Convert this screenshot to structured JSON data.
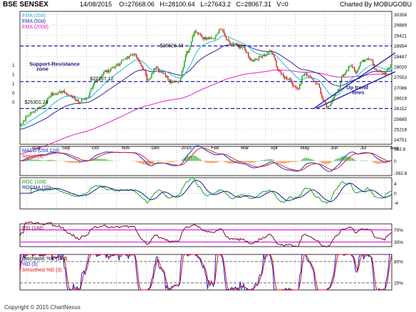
{
  "header": {
    "title": "BSE SENSEX",
    "date": "14/08/2015",
    "open": "O=27668.06",
    "high": "H=28100.64",
    "low": "L=27643.2",
    "close": "C=28067.31",
    "volume": "V=0",
    "charted_by": "Charted By MOBUGOBU"
  },
  "footer": {
    "copyright": "Copyright © 2015 ChartNexus"
  },
  "colors": {
    "ema20": "#22bcd6",
    "ema50": "#2a2a9c",
    "ema200": "#dd22cc",
    "price_up": "#13a313",
    "price_down": "#d11c1c",
    "support_line": "#2222aa",
    "trend_line": "#2222aa",
    "macd": "#1a2acc",
    "signal": "#e02020",
    "hist_up": "#1aa01a",
    "hist_down": "#e06a10",
    "roc": "#19a319",
    "rocma": "#1a1a99",
    "rsi": "#800040",
    "rsi_bands": "#cc00cc",
    "stoch_k": "#1a1acc",
    "stoch_d": "#e01010"
  },
  "chart_data": [
    {
      "panel": "price",
      "type": "candlestick",
      "legend": [
        "EMA (20d)",
        "EMA (50d)",
        "EMA (200d)"
      ],
      "legend_placement": "top-left",
      "y_ticks": [
        30358,
        29889,
        29421,
        28954,
        28487,
        28020,
        27553,
        27086,
        26619,
        26152,
        25685,
        25218,
        24751
      ],
      "ylim": [
        24550,
        30500
      ],
      "left_axis_labels": [
        "1",
        "1",
        "1",
        "0",
        "0"
      ],
      "x_ticks": [
        "Aug",
        "Sep",
        "Oct",
        "Nov",
        "Dec",
        "2015",
        "Feb",
        "Mar",
        "Apr",
        "May",
        "Jun",
        "Jul",
        "Aug"
      ],
      "close_anchors": [
        [
          0,
          25400
        ],
        [
          8,
          25900
        ],
        [
          18,
          26200
        ],
        [
          28,
          26800
        ],
        [
          36,
          26900
        ],
        [
          44,
          26700
        ],
        [
          50,
          26450
        ],
        [
          56,
          26600
        ],
        [
          66,
          27400
        ],
        [
          74,
          27800
        ],
        [
          84,
          28100
        ],
        [
          90,
          28400
        ],
        [
          98,
          28600
        ],
        [
          106,
          27900
        ],
        [
          110,
          27400
        ],
        [
          116,
          27950
        ],
        [
          124,
          27650
        ],
        [
          130,
          27300
        ],
        [
          136,
          27400
        ],
        [
          144,
          28700
        ],
        [
          150,
          29600
        ],
        [
          158,
          29300
        ],
        [
          166,
          29300
        ],
        [
          172,
          29700
        ],
        [
          180,
          29100
        ],
        [
          190,
          28900
        ],
        [
          200,
          28300
        ],
        [
          208,
          28500
        ],
        [
          216,
          28700
        ],
        [
          222,
          27800
        ],
        [
          230,
          27450
        ],
        [
          238,
          27000
        ],
        [
          244,
          27700
        ],
        [
          250,
          27500
        ],
        [
          256,
          27200
        ],
        [
          260,
          26500
        ],
        [
          264,
          26200
        ],
        [
          272,
          26900
        ],
        [
          278,
          27700
        ],
        [
          284,
          28100
        ],
        [
          288,
          27800
        ],
        [
          294,
          28300
        ],
        [
          300,
          28400
        ],
        [
          305,
          27900
        ],
        [
          312,
          27700
        ],
        [
          318,
          28050
        ]
      ],
      "ema_end": {
        "ema20": 28060,
        "ema50": 27830,
        "ema200": 27420
      },
      "horizontal_levels": [
        28954,
        27357,
        26152
      ],
      "trend_lines": [
        [
          [
            252,
            26152
          ],
          [
            322,
            28650
          ]
        ],
        [
          [
            254,
            26152
          ],
          [
            322,
            27800
          ]
        ]
      ],
      "annotations": [
        {
          "text": "$28826.43",
          "value": 28826.43,
          "index": 120
        },
        {
          "text": "$27357.12",
          "value": 27357.12,
          "index": 60
        },
        {
          "text": "$26301.24",
          "value": 26301.24,
          "index": 4
        },
        {
          "text": "Support-Resistance",
          "value": 28000,
          "index": 8
        },
        {
          "text": "zone",
          "value": 27780,
          "index": 14
        },
        {
          "text": "Up trend",
          "value": 26950,
          "index": 280
        },
        {
          "text": "lines",
          "value": 26730,
          "index": 285
        }
      ]
    },
    {
      "panel": "macd",
      "type": "line+bar",
      "legend": [
        "MACD (26d,12d)",
        "Signal (9)"
      ],
      "y_ticks": [
        "392.8",
        "0",
        "-392.8"
      ],
      "ylim": [
        -480,
        480
      ]
    },
    {
      "panel": "roc",
      "type": "line",
      "legend": [
        "ROC (10d)",
        "ROCMA (10)"
      ],
      "y_ticks": [
        "4",
        "0",
        "-4"
      ],
      "ylim": [
        -6.5,
        6.5
      ]
    },
    {
      "panel": "rsi",
      "type": "line",
      "legend": [
        "RSI (14d)"
      ],
      "y_ticks": [
        "70%",
        "30%"
      ],
      "band_levels": [
        70,
        30
      ],
      "ylim": [
        15,
        90
      ]
    },
    {
      "panel": "stochastic",
      "type": "line",
      "legend": [
        "Stochastic %K (14d)",
        "%D (3)",
        "Smoothed %D (3)"
      ],
      "y_ticks": [
        "80%",
        "20%"
      ],
      "band_levels": [
        80,
        20
      ],
      "ylim": [
        0,
        100
      ]
    }
  ]
}
